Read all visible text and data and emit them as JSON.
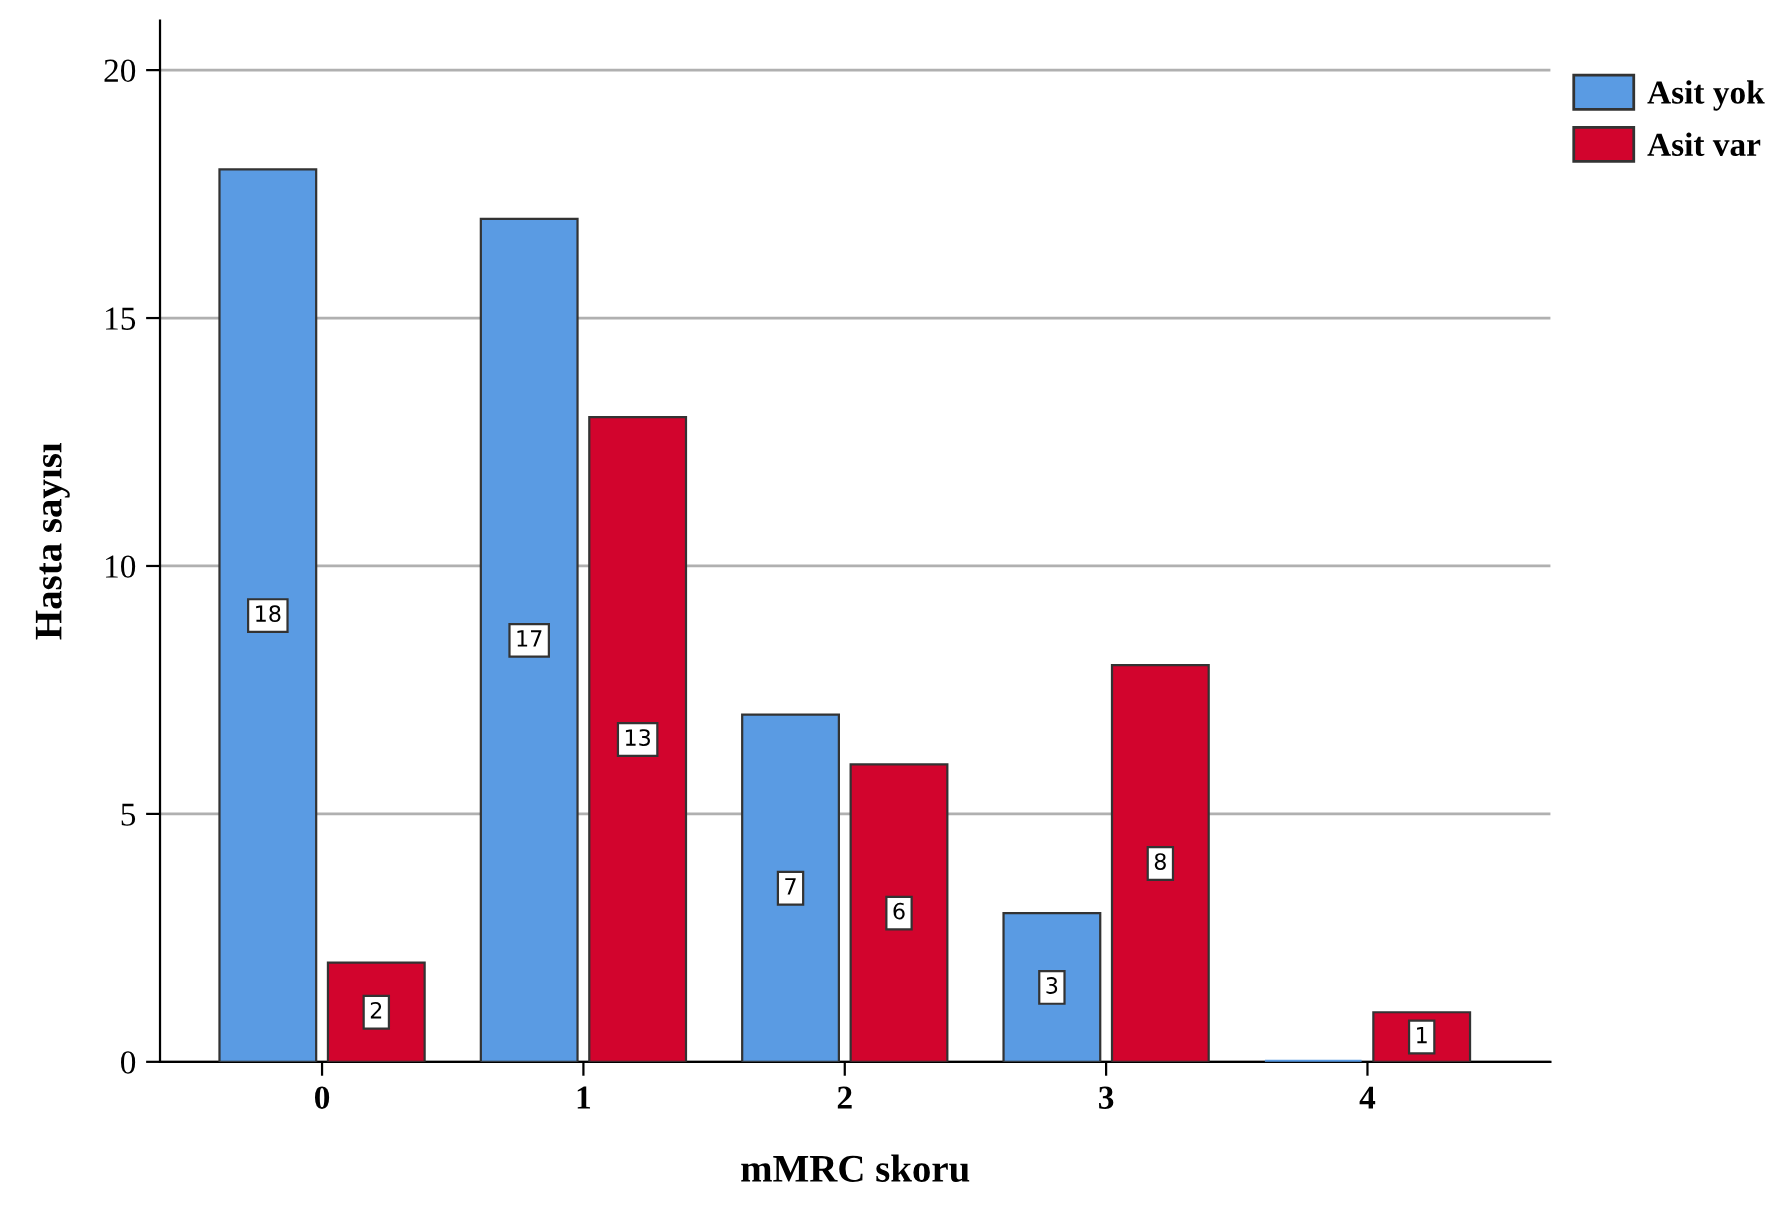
{
  "chart_data": {
    "type": "bar",
    "xlabel": "mMRC skoru",
    "ylabel": "Hasta sayısı",
    "categories": [
      "0",
      "1",
      "2",
      "3",
      "4"
    ],
    "series": [
      {
        "name": "Asit yok",
        "color": "#5a9be3",
        "values": [
          18,
          17,
          7,
          3,
          0
        ],
        "value_labels": [
          "18",
          "17",
          "7",
          "3",
          null
        ]
      },
      {
        "name": "Asit var",
        "color": "#d2042d",
        "values": [
          2,
          13,
          6,
          8,
          1
        ],
        "value_labels": [
          "2",
          "13",
          "6",
          "8",
          "1"
        ]
      }
    ],
    "ylim": [
      0,
      21
    ],
    "yticks": [
      0,
      5,
      10,
      15,
      20
    ],
    "grid": "y",
    "legend": "top right"
  }
}
